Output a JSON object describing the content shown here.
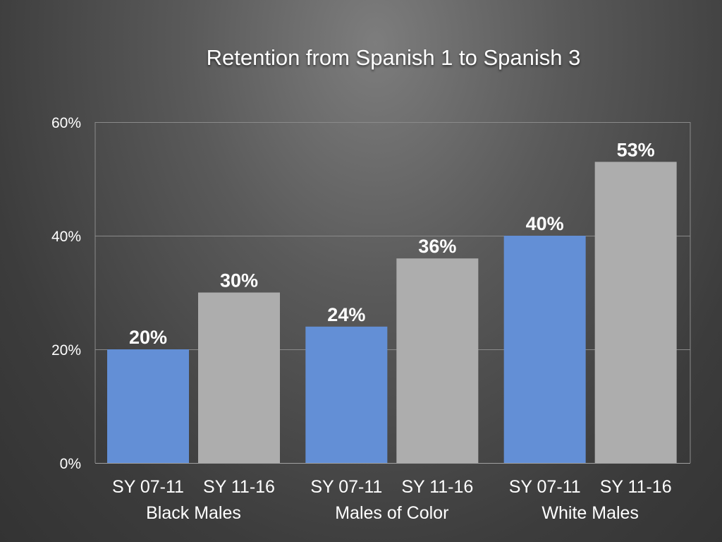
{
  "chart_data": {
    "type": "bar",
    "title": "Retention from Spanish 1 to Spanish 3",
    "groups": [
      "Black Males",
      "Males of Color",
      "White Males"
    ],
    "series": [
      {
        "label": "SY 07-11",
        "color": "#638fd6",
        "values": [
          20,
          24,
          40
        ],
        "value_labels": [
          "20%",
          "24%",
          "40%"
        ]
      },
      {
        "label": "SY 11-16",
        "color": "#adadad",
        "values": [
          30,
          36,
          53
        ],
        "value_labels": [
          "30%",
          "36%",
          "53%"
        ]
      }
    ],
    "ylim": [
      0,
      60
    ],
    "yticks": [
      0,
      20,
      40,
      60
    ],
    "ytick_labels": [
      "0%",
      "20%",
      "40%",
      "60%"
    ],
    "grid": true,
    "legend": "none"
  }
}
